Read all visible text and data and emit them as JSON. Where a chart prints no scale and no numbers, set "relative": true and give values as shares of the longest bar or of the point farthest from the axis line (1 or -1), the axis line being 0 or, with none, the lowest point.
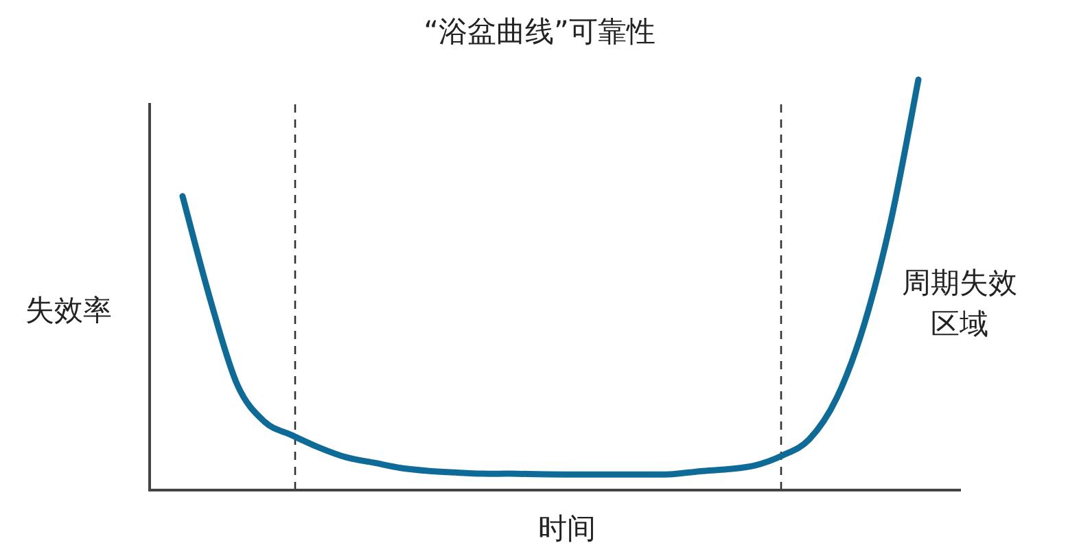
{
  "chart_data": {
    "type": "line",
    "title": "“浴盆曲线”可靠性",
    "xlabel": "时间",
    "ylabel": "失效率",
    "annotations": [
      "周期失效区域"
    ],
    "relative": true,
    "categories": [
      null,
      null,
      null,
      null,
      null,
      null,
      null,
      null,
      null,
      null,
      null,
      null,
      null,
      null,
      null,
      null,
      null,
      null,
      null,
      null,
      null,
      null,
      null,
      null,
      null,
      null,
      null,
      null
    ],
    "series": [
      {
        "color": "#0e6a96",
        "values": [
          0.716,
          0.468,
          0.258,
          0.167,
          0.134,
          0.104,
          0.08,
          0.067,
          0.054,
          0.047,
          0.043,
          0.04,
          0.04,
          0.039,
          0.038,
          0.038,
          0.038,
          0.038,
          0.039,
          0.046,
          0.051,
          0.06,
          0.084,
          0.124,
          0.224,
          0.401,
          0.659,
          1
        ]
      }
    ],
    "marker": "none",
    "line_style": "solid"
  }
}
